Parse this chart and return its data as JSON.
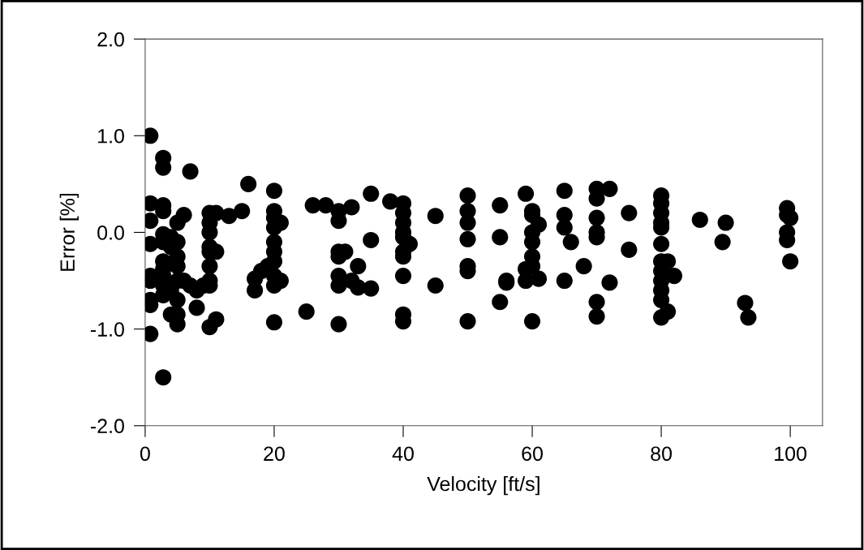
{
  "chart_data": {
    "type": "scatter",
    "xlabel": "Velocity [ft/s]",
    "ylabel": "Error [%]",
    "xlim": [
      0,
      105
    ],
    "ylim": [
      -2.0,
      2.0
    ],
    "xticks": [
      0,
      20,
      40,
      60,
      80,
      100
    ],
    "yticks": [
      {
        "value": -2.0,
        "label": "-2.0"
      },
      {
        "value": -1.0,
        "label": "-1.0"
      },
      {
        "value": 0.0,
        "label": "0.0"
      },
      {
        "value": 1.0,
        "label": "1.0"
      },
      {
        "value": 2.0,
        "label": "2.0"
      }
    ],
    "grid": false,
    "marker": "circle",
    "series": [
      {
        "color": "#000000",
        "x": [
          0.8,
          0.8,
          0.8,
          0.8,
          0.8,
          0.8,
          0.8,
          0.8,
          0.8,
          2.8,
          2.8,
          2.8,
          2.8,
          2.8,
          2.8,
          2.8,
          2.8,
          2.8,
          2.8,
          2.8,
          2.8,
          4,
          4,
          4,
          4,
          5,
          5,
          5,
          5,
          5,
          5,
          5,
          5,
          6,
          6,
          7,
          7,
          8,
          8,
          9,
          10,
          10,
          10,
          10,
          10,
          10,
          10,
          10,
          10,
          11,
          11,
          11,
          13,
          15,
          16,
          17,
          17,
          18,
          19,
          20,
          20,
          20,
          20,
          20,
          20,
          20,
          20,
          20,
          20,
          21,
          21,
          25,
          26,
          28,
          30,
          30,
          30,
          30,
          30,
          30,
          30,
          31,
          32,
          32,
          33,
          33,
          35,
          35,
          35,
          38,
          40,
          40,
          40,
          40,
          40,
          40,
          40,
          40,
          40,
          40,
          41,
          45,
          45,
          50,
          50,
          50,
          50,
          50,
          50,
          50,
          55,
          55,
          55,
          56,
          56,
          59,
          59,
          59,
          60,
          60,
          60,
          60,
          60,
          60,
          60,
          61,
          61,
          65,
          65,
          65,
          65,
          66,
          68,
          70,
          70,
          70,
          70,
          70,
          70,
          70,
          72,
          72,
          75,
          75,
          80,
          80,
          80,
          80,
          80,
          80,
          80,
          80,
          80,
          80,
          80,
          80,
          81,
          81,
          82,
          86,
          89.5,
          90,
          93,
          93.5,
          99.5,
          99.5,
          99.5,
          99.5,
          100,
          100
        ],
        "values": [
          1.0,
          0.3,
          0.12,
          -0.12,
          -0.45,
          -0.5,
          -0.7,
          -0.75,
          -1.05,
          0.77,
          0.67,
          0.28,
          0.22,
          -0.02,
          -0.1,
          -0.3,
          -0.38,
          -0.45,
          -0.55,
          -0.65,
          -1.5,
          -0.15,
          -0.05,
          -0.6,
          -0.85,
          0.1,
          -0.1,
          -0.25,
          -0.35,
          -0.5,
          -0.7,
          -0.85,
          -0.95,
          0.18,
          -0.5,
          0.63,
          -0.55,
          -0.78,
          -0.6,
          -0.55,
          0.2,
          0.1,
          0.0,
          -0.15,
          -0.2,
          -0.35,
          -0.5,
          -0.55,
          -0.98,
          0.2,
          -0.2,
          -0.9,
          0.17,
          0.22,
          0.5,
          -0.48,
          -0.6,
          -0.4,
          -0.35,
          0.43,
          0.22,
          0.15,
          0.05,
          -0.1,
          -0.2,
          -0.3,
          -0.45,
          -0.55,
          -0.93,
          0.1,
          -0.5,
          -0.82,
          0.28,
          0.28,
          0.22,
          0.12,
          -0.2,
          -0.25,
          -0.45,
          -0.55,
          -0.95,
          -0.2,
          0.26,
          -0.5,
          -0.57,
          -0.35,
          -0.08,
          0.4,
          -0.58,
          0.32,
          0.3,
          0.2,
          0.1,
          0.0,
          -0.05,
          -0.2,
          -0.25,
          -0.45,
          -0.85,
          -0.92,
          -0.12,
          0.17,
          -0.55,
          0.38,
          0.22,
          0.1,
          -0.07,
          -0.35,
          -0.4,
          -0.92,
          -0.05,
          0.28,
          -0.72,
          -0.5,
          -0.52,
          0.4,
          -0.38,
          -0.5,
          0.22,
          0.18,
          0.0,
          -0.1,
          -0.25,
          -0.35,
          -0.92,
          0.08,
          -0.48,
          0.43,
          0.18,
          0.05,
          -0.5,
          -0.1,
          -0.35,
          0.45,
          0.35,
          0.15,
          0.0,
          -0.05,
          -0.72,
          -0.87,
          0.45,
          -0.52,
          0.2,
          -0.18,
          0.38,
          0.3,
          0.2,
          0.1,
          0.05,
          -0.12,
          -0.3,
          -0.4,
          -0.5,
          -0.6,
          -0.7,
          -0.88,
          -0.3,
          -0.82,
          -0.45,
          0.13,
          -0.1,
          0.1,
          -0.73,
          -0.88,
          0.25,
          0.18,
          0.0,
          -0.08,
          0.15,
          -0.3
        ]
      }
    ]
  }
}
